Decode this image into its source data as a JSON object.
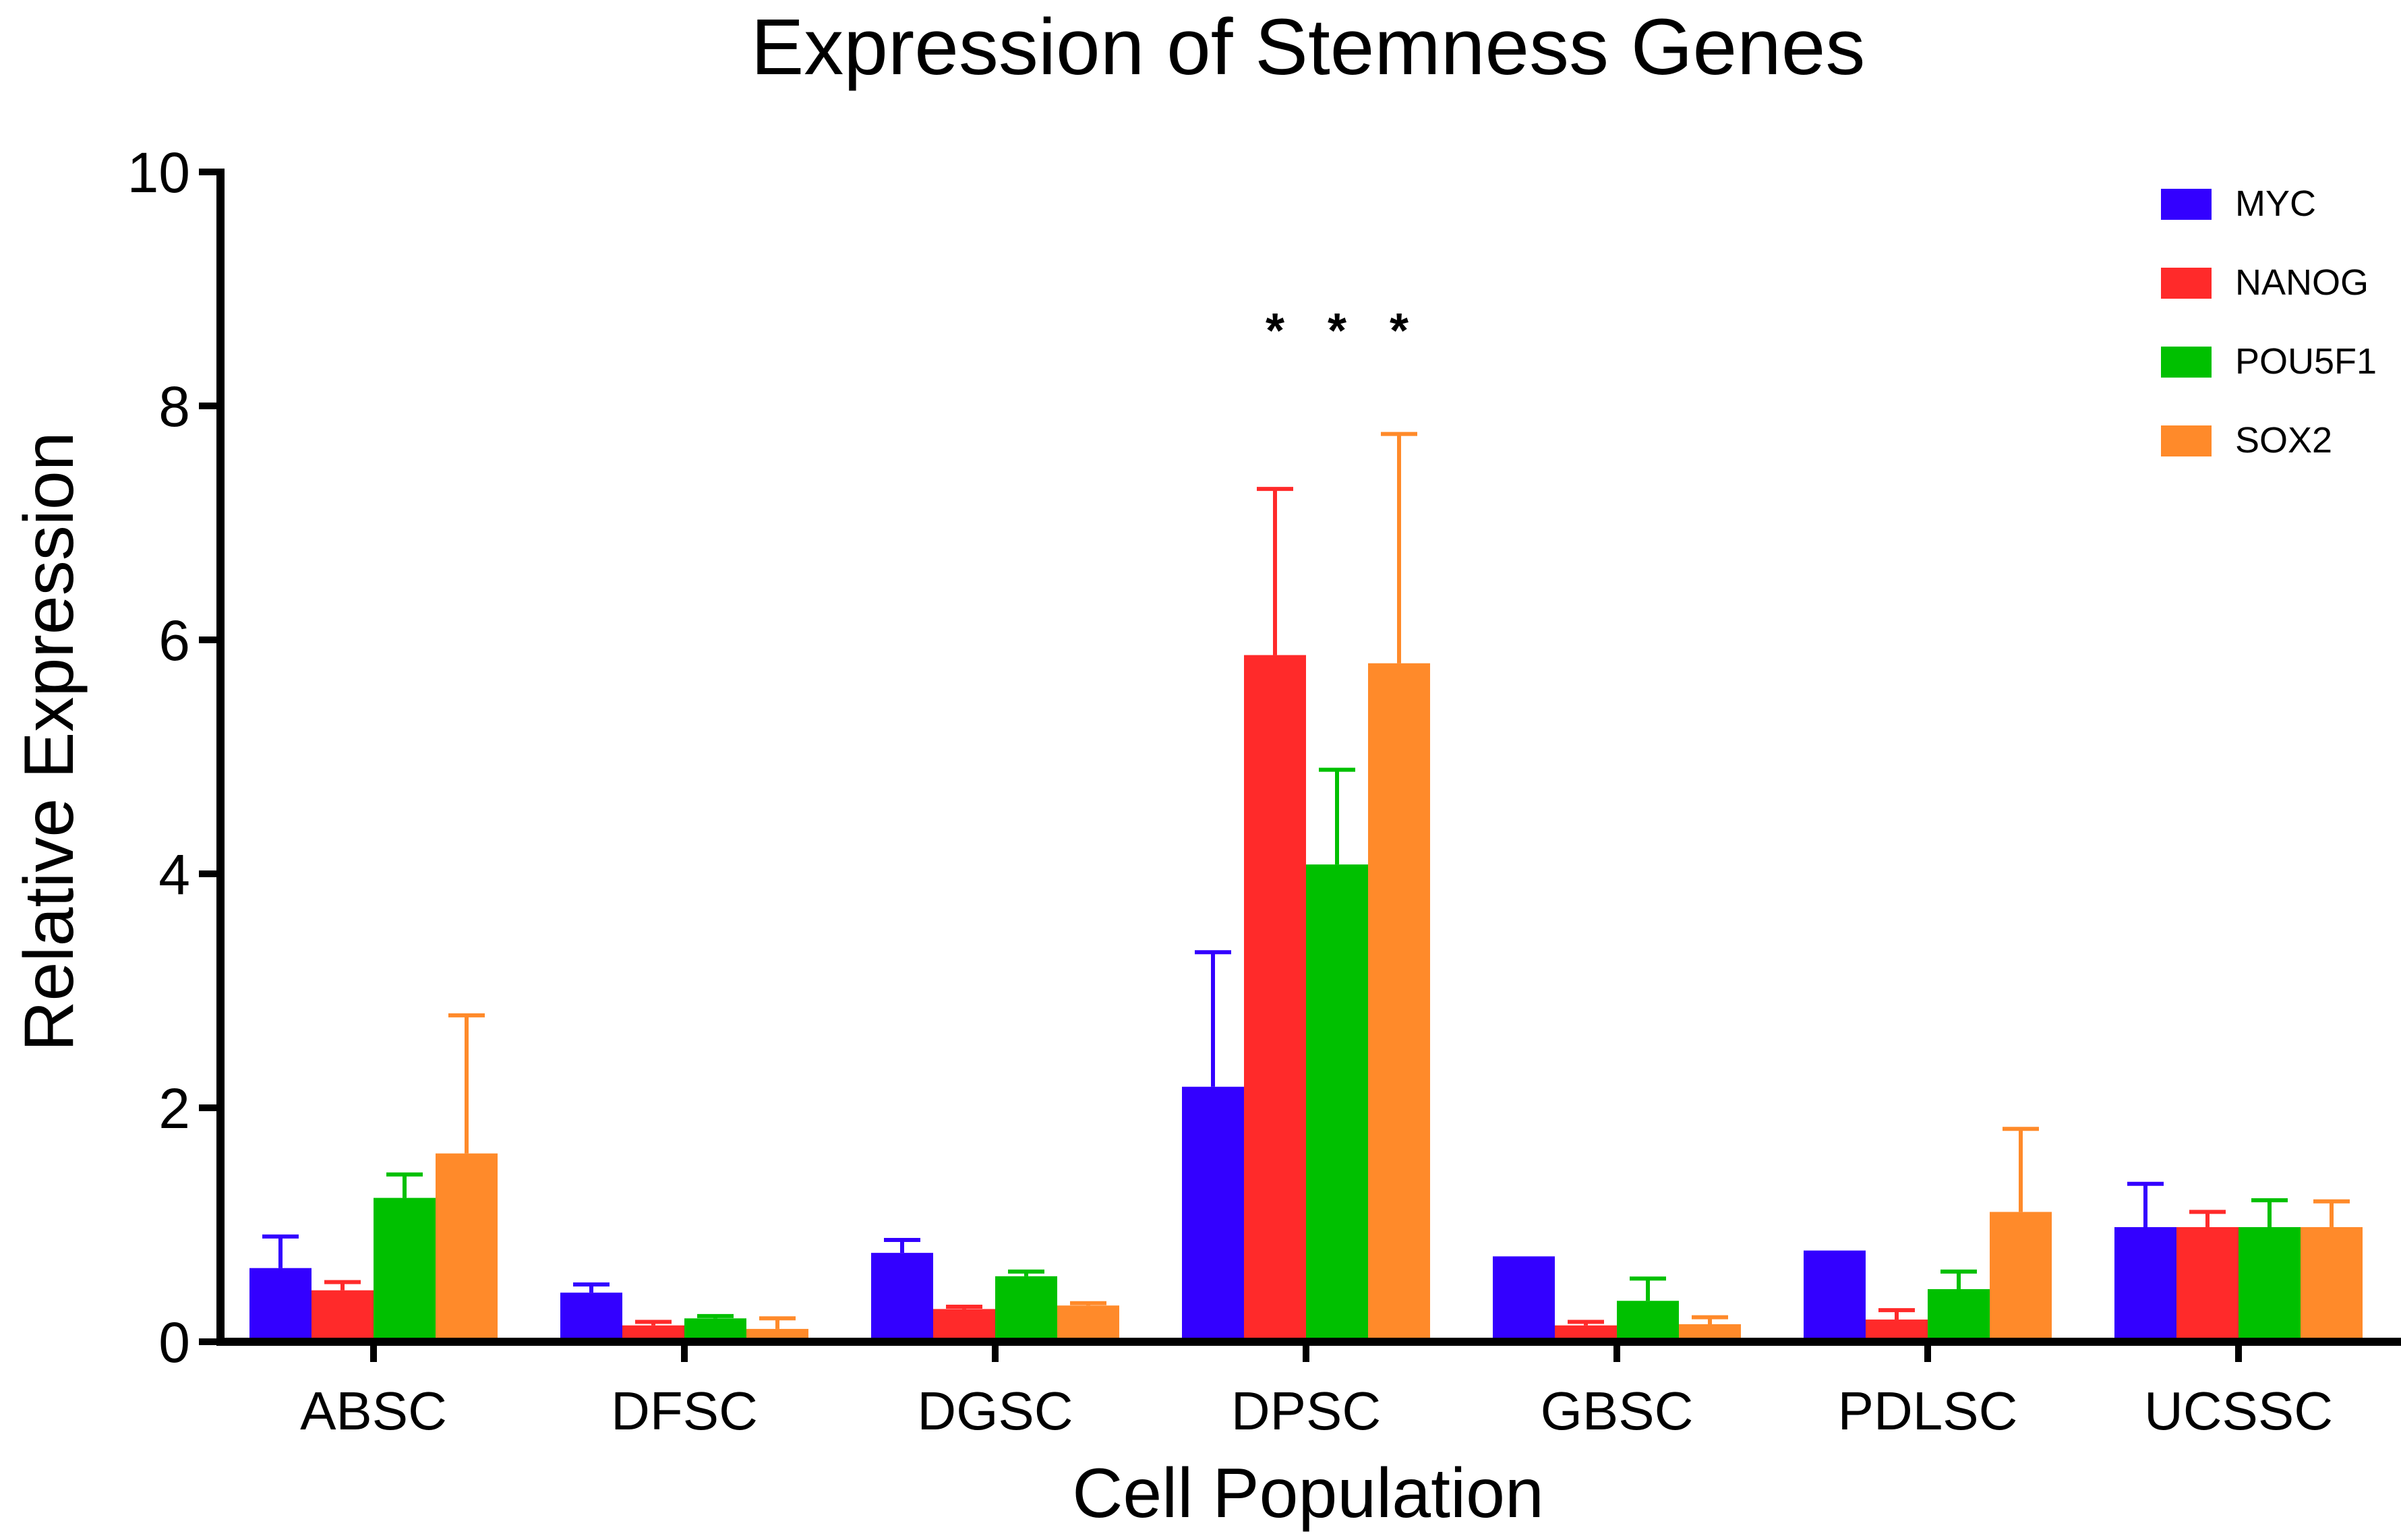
{
  "chart_data": {
    "type": "bar",
    "title": "Expression of Stemness Genes",
    "xlabel": "Cell Population",
    "ylabel": "Relative Expression",
    "ylim": [
      0,
      10
    ],
    "yticks": [
      "0",
      "2",
      "4",
      "6",
      "8",
      "10"
    ],
    "categories": [
      "ABSC",
      "DFSC",
      "DGSC",
      "DPSC",
      "GBSC",
      "PDLSC",
      "UCSSC"
    ],
    "series": [
      {
        "name": "MYC",
        "color": "#3300FF",
        "values": [
          0.63,
          0.42,
          0.76,
          2.18,
          0.73,
          0.78,
          0.98
        ],
        "errors": [
          0.27,
          0.07,
          0.11,
          1.15,
          0.0,
          0.0,
          0.37
        ]
      },
      {
        "name": "NANOG",
        "color": "#FF2A2A",
        "values": [
          0.44,
          0.14,
          0.28,
          5.87,
          0.14,
          0.19,
          0.98
        ],
        "errors": [
          0.07,
          0.03,
          0.02,
          1.42,
          0.03,
          0.08,
          0.13
        ]
      },
      {
        "name": "POU5F1",
        "color": "#00C000",
        "values": [
          1.23,
          0.2,
          0.56,
          4.08,
          0.35,
          0.45,
          0.98
        ],
        "errors": [
          0.2,
          0.02,
          0.04,
          0.81,
          0.19,
          0.15,
          0.23
        ]
      },
      {
        "name": "SOX2",
        "color": "#FF8A2A",
        "values": [
          1.61,
          0.11,
          0.31,
          5.8,
          0.15,
          1.11,
          0.98
        ],
        "errors": [
          1.18,
          0.09,
          0.02,
          1.96,
          0.06,
          0.71,
          0.22
        ]
      }
    ],
    "annotations": [
      {
        "text": "*",
        "category": "DPSC",
        "series": "NANOG"
      },
      {
        "text": "*",
        "category": "DPSC",
        "series": "POU5F1"
      },
      {
        "text": "*",
        "category": "DPSC",
        "series": "SOX2"
      }
    ],
    "legend_position": "top-right"
  }
}
